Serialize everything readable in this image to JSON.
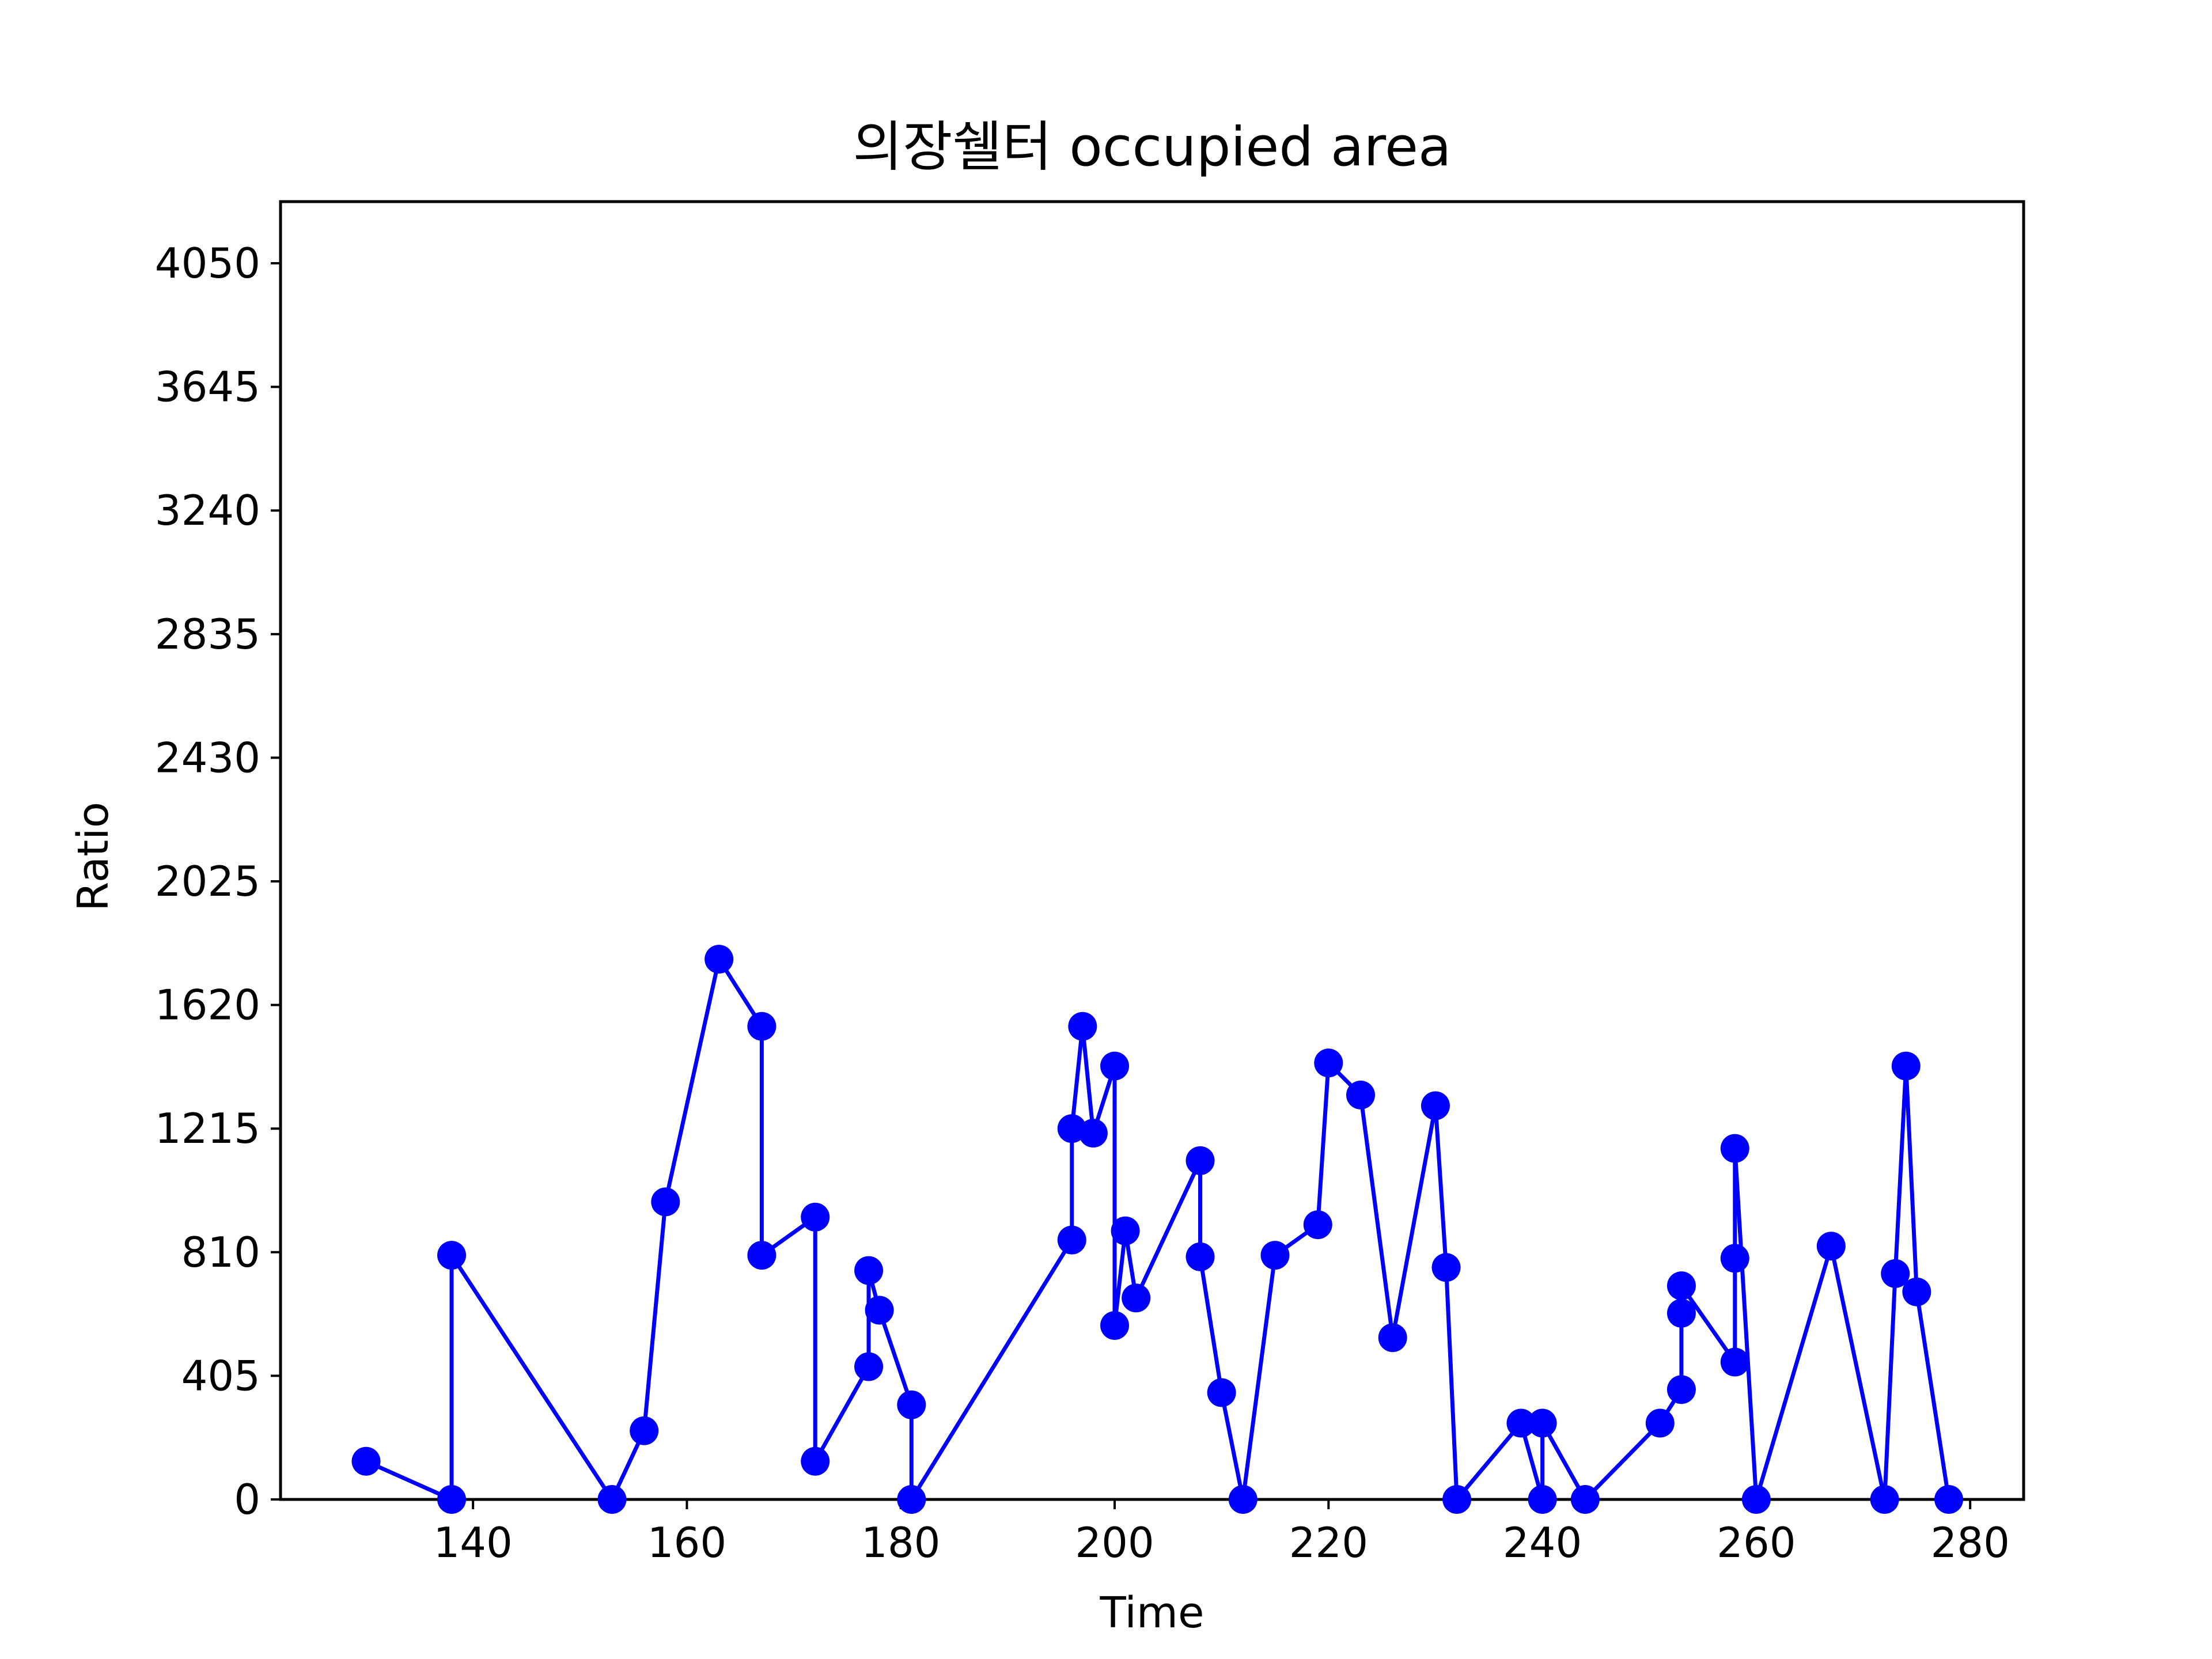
{
  "chart_data": {
    "type": "line",
    "title": "의장쉘터 occupied area",
    "xlabel": "Time",
    "ylabel": "Ratio",
    "xlim": [
      122,
      285
    ],
    "ylim": [
      0,
      4252
    ],
    "x_ticks": [
      140,
      160,
      180,
      200,
      220,
      240,
      260,
      280
    ],
    "y_ticks": [
      0,
      405,
      810,
      1215,
      1620,
      2025,
      2430,
      2835,
      3240,
      3645,
      4050
    ],
    "grid": false,
    "line_color": "#0000ff",
    "marker": "circle",
    "series": [
      {
        "points": [
          [
            130,
            125
          ],
          [
            138,
            0
          ],
          [
            138,
            800
          ],
          [
            153,
            0
          ],
          [
            156,
            225
          ],
          [
            158,
            975
          ],
          [
            163,
            1770
          ],
          [
            167,
            1550
          ],
          [
            167,
            800
          ],
          [
            172,
            925
          ],
          [
            172,
            125
          ],
          [
            177,
            435
          ],
          [
            177,
            750
          ],
          [
            178,
            620
          ],
          [
            181,
            310
          ],
          [
            181,
            0
          ],
          [
            196,
            850
          ],
          [
            196,
            1215
          ],
          [
            197,
            1550
          ],
          [
            198,
            1200
          ],
          [
            200,
            1420
          ],
          [
            200,
            570
          ],
          [
            201,
            880
          ],
          [
            202,
            660
          ],
          [
            208,
            1110
          ],
          [
            208,
            795
          ],
          [
            210,
            350
          ],
          [
            212,
            0
          ],
          [
            215,
            800
          ],
          [
            219,
            900
          ],
          [
            220,
            1430
          ],
          [
            223,
            1325
          ],
          [
            226,
            530
          ],
          [
            230,
            1290
          ],
          [
            231,
            760
          ],
          [
            232,
            0
          ],
          [
            238,
            250
          ],
          [
            240,
            0
          ],
          [
            240,
            250
          ],
          [
            244,
            0
          ],
          [
            251,
            250
          ],
          [
            253,
            360
          ],
          [
            253,
            610
          ],
          [
            253,
            700
          ],
          [
            258,
            450
          ],
          [
            258,
            790
          ],
          [
            258,
            1150
          ],
          [
            260,
            0
          ],
          [
            267,
            830
          ],
          [
            272,
            0
          ],
          [
            273,
            740
          ],
          [
            274,
            1420
          ],
          [
            275,
            680
          ],
          [
            278,
            0
          ]
        ]
      }
    ]
  }
}
